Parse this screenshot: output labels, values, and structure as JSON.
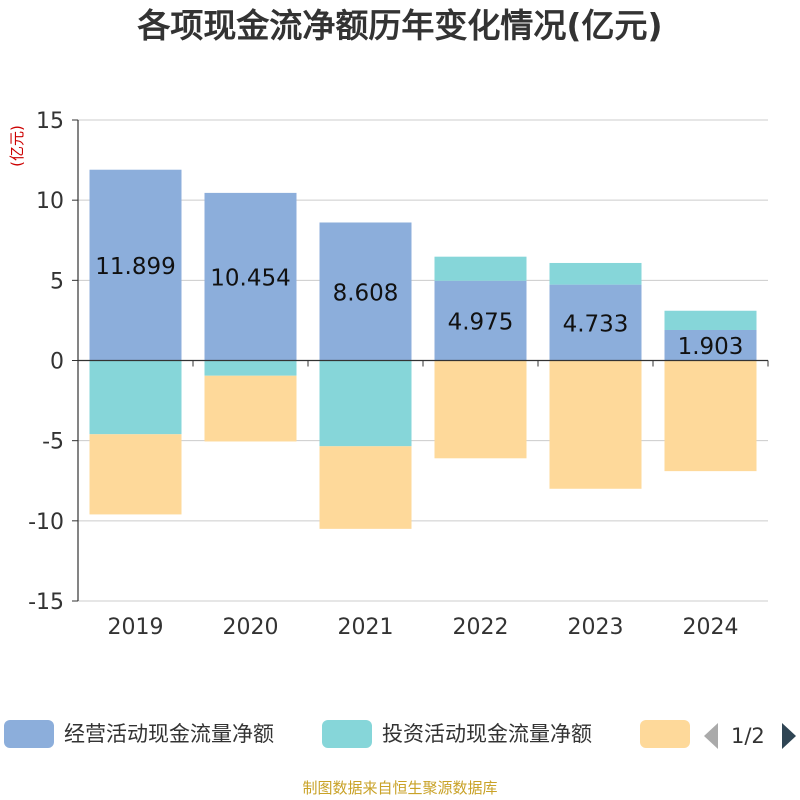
{
  "title": "各项现金流净额历年变化情况(亿元)",
  "source": "制图数据来自恒生聚源数据库",
  "legend_pager": "1/2",
  "colors": {
    "operating": "#8caedb",
    "investing": "#86d6d9",
    "financing": "#fed99a",
    "axis": "#333333",
    "grid": "#cccccc",
    "unit": "#cc0000"
  },
  "chart_data": {
    "type": "bar",
    "stacked": true,
    "title": "各项现金流净额历年变化情况(亿元)",
    "ylabel": "(亿元)",
    "ylim": [
      -15,
      15
    ],
    "yticks": [
      15,
      10,
      5,
      0,
      -5,
      -10,
      -15
    ],
    "categories": [
      "2019",
      "2020",
      "2021",
      "2022",
      "2023",
      "2024"
    ],
    "series": [
      {
        "name": "经营活动现金流量净额",
        "color_key": "operating",
        "values": [
          11.899,
          10.454,
          8.608,
          4.975,
          4.733,
          1.903
        ],
        "labels": [
          "11.899",
          "10.454",
          "8.608",
          "4.975",
          "4.733",
          "1.903"
        ]
      },
      {
        "name": "投资活动现金流量净额",
        "color_key": "investing",
        "values": [
          -4.6,
          -0.95,
          -5.35,
          1.5,
          1.35,
          1.2
        ]
      },
      {
        "name": "",
        "color_key": "financing",
        "values": [
          -5.0,
          -4.1,
          -5.15,
          -6.1,
          -8.0,
          -6.9
        ]
      }
    ],
    "legend_position": "bottom"
  }
}
